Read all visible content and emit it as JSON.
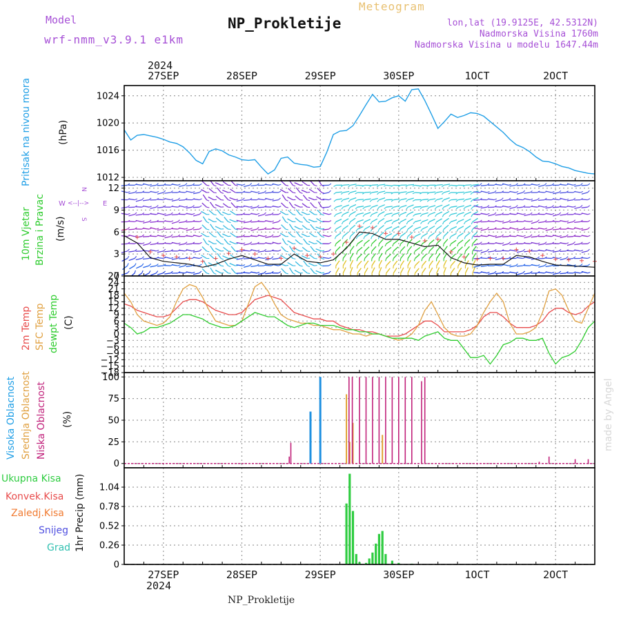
{
  "header": {
    "model_label": "Model",
    "model_name": "wrf-nmm_v3.9.1 e1km",
    "meteogram": "Meteogram",
    "station": "NP_Prokletije",
    "lonlat": "lon,lat (19.9125E, 42.5312N)",
    "elevation": "Nadmorska Visina 1760m",
    "model_elevation": "Nadmorska Visina u modelu 1647.44m",
    "footer_station": "NP_Prokletije",
    "credit": "made by Angel",
    "year_top": "2024",
    "year_bottom": "2024"
  },
  "colors": {
    "pressure": "#1e9ee6",
    "temp2m": "#e84b4b",
    "sfc_temp": "#e0a040",
    "dewpoint": "#2ecc2e",
    "high_cloud": "#1e90e0",
    "mid_cloud": "#e0a030",
    "low_cloud": "#c0207a",
    "precip_total": "#2ecc40",
    "purple_text": "#a64fd6",
    "grid": "#9a9a9a"
  },
  "time_axis": {
    "labels": [
      "27SEP",
      "28SEP",
      "29SEP",
      "30SEP",
      "1OCT",
      "2OCT"
    ],
    "label_hours": [
      0,
      24,
      48,
      72,
      96,
      120
    ],
    "tmin": -12,
    "tmax": 132
  },
  "panels": {
    "pressure": {
      "ylabel_left": "Pritisak na nivou mora",
      "unit": "(hPa)",
      "ticks": [
        "1012",
        "1016",
        "1020",
        "1024"
      ],
      "ylim": [
        1011.5,
        1025.5
      ]
    },
    "wind": {
      "ylabel_1": "10m Vjetar",
      "ylabel_2": "Brzina i Pravac",
      "unit": "(m/s)",
      "ticks": [
        "0",
        "3",
        "6",
        "9",
        "12"
      ],
      "ylim": [
        0,
        13
      ],
      "compass_w": "W",
      "compass_e": "E",
      "compass_n": "N",
      "compass_s": "S",
      "compass_axis": "<--|-->"
    },
    "temp": {
      "ylabel_1": "2m Temp",
      "ylabel_2": "SFC Temp",
      "ylabel_3": "dewpt Temp",
      "unit": "(C)",
      "ticks": [
        "-18",
        "-15",
        "-12",
        "-9",
        "-6",
        "-3",
        "0",
        "3",
        "6",
        "9",
        "12",
        "15",
        "18",
        "21",
        "24",
        "27"
      ],
      "ylim": [
        -18,
        27
      ]
    },
    "cloud": {
      "ylabel_1": "Visoka Oblacnost",
      "ylabel_2": "Srednja Oblacnost",
      "ylabel_3": "Niska Oblacnost",
      "unit": "(%)",
      "ticks": [
        "0",
        "25",
        "50",
        "75",
        "100"
      ],
      "ylim": [
        -5,
        105
      ]
    },
    "precip": {
      "legend": [
        "Ukupna Kisa",
        "Konvek.Kisa",
        "Zaledj.Kisa",
        "Snijeg",
        "Grad"
      ],
      "legend_colors": [
        "#2ecc40",
        "#e84b4b",
        "#f07a30",
        "#5050e0",
        "#30c0b0"
      ],
      "unit": "1hr Precip (mm)",
      "ticks": [
        "0",
        "0.26",
        "0.52",
        "0.78",
        "1.04"
      ],
      "ylim": [
        0,
        1.3
      ]
    }
  },
  "chart_data": [
    {
      "type": "line",
      "name": "pressure",
      "x": [
        -12,
        -10,
        -8,
        -6,
        -4,
        -2,
        0,
        2,
        4,
        6,
        8,
        10,
        12,
        14,
        16,
        18,
        20,
        22,
        24,
        26,
        28,
        30,
        32,
        34,
        36,
        38,
        40,
        42,
        44,
        46,
        48,
        50,
        52,
        54,
        56,
        58,
        60,
        62,
        64,
        66,
        68,
        70,
        72,
        74,
        76,
        78,
        80,
        82,
        84,
        86,
        88,
        90,
        92,
        94,
        96,
        98,
        100,
        102,
        104,
        106,
        108,
        110,
        112,
        114,
        116,
        118,
        120,
        122,
        124,
        126,
        128,
        130,
        132
      ],
      "y": [
        1019,
        1017.5,
        1018.2,
        1018.3,
        1018.1,
        1017.9,
        1017.6,
        1017.2,
        1017,
        1016.5,
        1015.6,
        1014.5,
        1014,
        1015.8,
        1016.2,
        1015.9,
        1015.3,
        1015,
        1014.6,
        1014.5,
        1014.6,
        1013.5,
        1012.5,
        1013.1,
        1014.8,
        1015,
        1014.1,
        1013.9,
        1013.8,
        1013.5,
        1013.6,
        1015.7,
        1018.3,
        1018.8,
        1018.9,
        1019.6,
        1021.1,
        1022.7,
        1024.2,
        1023.1,
        1023.2,
        1023.7,
        1024,
        1023.2,
        1024.9,
        1025.0,
        1023.3,
        1021.3,
        1019.2,
        1020.2,
        1021.3,
        1020.8,
        1021.1,
        1021.5,
        1021.4,
        1021.0,
        1020.2,
        1019.4,
        1018.6,
        1017.6,
        1016.8,
        1016.4,
        1015.8,
        1015.0,
        1014.4,
        1014.3,
        1014.0,
        1013.6,
        1013.4,
        1013.0,
        1012.8,
        1012.6,
        1012.5
      ]
    },
    {
      "type": "line",
      "name": "wind_speed",
      "x": [
        -12,
        -8,
        -4,
        0,
        4,
        8,
        12,
        16,
        20,
        24,
        28,
        32,
        36,
        40,
        44,
        48,
        52,
        56,
        60,
        64,
        68,
        72,
        76,
        80,
        84,
        88,
        92,
        96,
        100,
        104,
        108,
        112,
        116,
        120,
        124,
        128,
        132
      ],
      "y": [
        5.5,
        4.5,
        2.5,
        2.0,
        1.8,
        1.6,
        1.2,
        1.6,
        2.3,
        2.8,
        2.2,
        1.6,
        1.6,
        3.0,
        2.0,
        1.8,
        2.2,
        3.8,
        6.0,
        5.8,
        5.0,
        5.0,
        4.5,
        4.0,
        4.2,
        2.5,
        1.8,
        1.5,
        1.6,
        1.6,
        2.8,
        2.6,
        2.0,
        1.5,
        1.4,
        1.3,
        1.2
      ]
    },
    {
      "type": "line",
      "name": "temp",
      "x": [
        -12,
        -10,
        -8,
        -6,
        -4,
        -2,
        0,
        2,
        4,
        6,
        8,
        10,
        12,
        14,
        16,
        18,
        20,
        22,
        24,
        26,
        28,
        30,
        32,
        34,
        36,
        38,
        40,
        42,
        44,
        46,
        48,
        50,
        52,
        54,
        56,
        58,
        60,
        62,
        64,
        66,
        68,
        70,
        72,
        74,
        76,
        78,
        80,
        82,
        84,
        86,
        88,
        90,
        92,
        94,
        96,
        98,
        100,
        102,
        104,
        106,
        108,
        110,
        112,
        114,
        116,
        118,
        120,
        122,
        124,
        126,
        128,
        130,
        132
      ],
      "series": [
        {
          "name": "2m Temp",
          "values": [
            14,
            13,
            11,
            10,
            9,
            8,
            8,
            9,
            12,
            15,
            16,
            16,
            15,
            13,
            11,
            10,
            9,
            9,
            10,
            13,
            16,
            17,
            18,
            17,
            16,
            13,
            10,
            9,
            8,
            7,
            7,
            6,
            6,
            4,
            3,
            2,
            2,
            1,
            1,
            0,
            -1,
            -1,
            -1,
            0,
            2,
            4,
            6,
            6,
            4,
            1,
            1,
            1,
            1,
            2,
            4,
            8,
            10,
            10,
            8,
            5,
            3,
            3,
            3,
            4,
            6,
            10,
            12,
            12,
            10,
            9,
            10,
            13,
            15
          ]
        },
        {
          "name": "SFC Temp",
          "values": [
            19,
            15,
            9,
            6,
            5,
            4,
            5,
            8,
            15,
            21,
            23,
            22,
            17,
            11,
            6,
            5,
            4,
            4,
            6,
            14,
            22,
            24,
            20,
            14,
            9,
            7,
            6,
            5,
            5,
            4,
            4,
            3,
            2,
            2,
            1,
            0,
            0,
            -1,
            0,
            0,
            -1,
            -2,
            -3,
            -2,
            0,
            4,
            11,
            15,
            9,
            3,
            0,
            -1,
            -1,
            0,
            4,
            10,
            15,
            19,
            15,
            5,
            0,
            0,
            1,
            3,
            10,
            20,
            21,
            18,
            11,
            6,
            5,
            12,
            19
          ]
        },
        {
          "name": "dewpt Temp",
          "values": [
            5,
            3,
            0,
            1,
            3,
            3,
            4,
            5,
            7,
            9,
            9,
            8,
            7,
            5,
            4,
            3,
            3,
            4,
            6,
            8,
            10,
            9,
            8,
            8,
            6,
            4,
            3,
            4,
            5,
            5,
            4,
            4,
            4,
            3,
            2,
            2,
            1,
            1,
            0,
            0,
            -1,
            -2,
            -2,
            -2,
            -2,
            -3,
            -1,
            0,
            1,
            -2,
            -3,
            -3,
            -7,
            -11,
            -11,
            -10,
            -14,
            -10,
            -5,
            -4,
            -2,
            -2,
            -3,
            -3,
            -2,
            -9,
            -14,
            -11,
            -10,
            -8,
            -3,
            3,
            6
          ]
        }
      ]
    },
    {
      "type": "bar",
      "name": "cloud",
      "series": [
        {
          "name": "Visoka Oblacnost",
          "x": [
            45,
            48
          ],
          "values": [
            60,
            100
          ]
        },
        {
          "name": "Srednja Oblacnost",
          "x": [
            56,
            57,
            58,
            67
          ],
          "values": [
            80,
            25,
            47,
            33
          ]
        },
        {
          "name": "Niska Oblacnost",
          "x": [
            38.5,
            39,
            56.8,
            57.8,
            60,
            62,
            64,
            66,
            68,
            70,
            72,
            74,
            76,
            79,
            80,
            115,
            118,
            126,
            130
          ],
          "values": [
            8,
            24,
            100,
            100,
            100,
            100,
            100,
            100,
            100,
            100,
            100,
            100,
            100,
            95,
            100,
            2,
            8,
            5,
            5
          ]
        }
      ]
    },
    {
      "type": "bar",
      "name": "precip_total",
      "x": [
        56,
        57,
        58,
        59,
        60,
        62,
        63,
        64,
        65,
        66,
        67,
        68,
        70,
        72,
        76
      ],
      "values": [
        0.82,
        1.22,
        0.72,
        0.14,
        0.03,
        0.02,
        0.08,
        0.16,
        0.28,
        0.41,
        0.45,
        0.14,
        0.05,
        0.02,
        0.01
      ]
    }
  ]
}
